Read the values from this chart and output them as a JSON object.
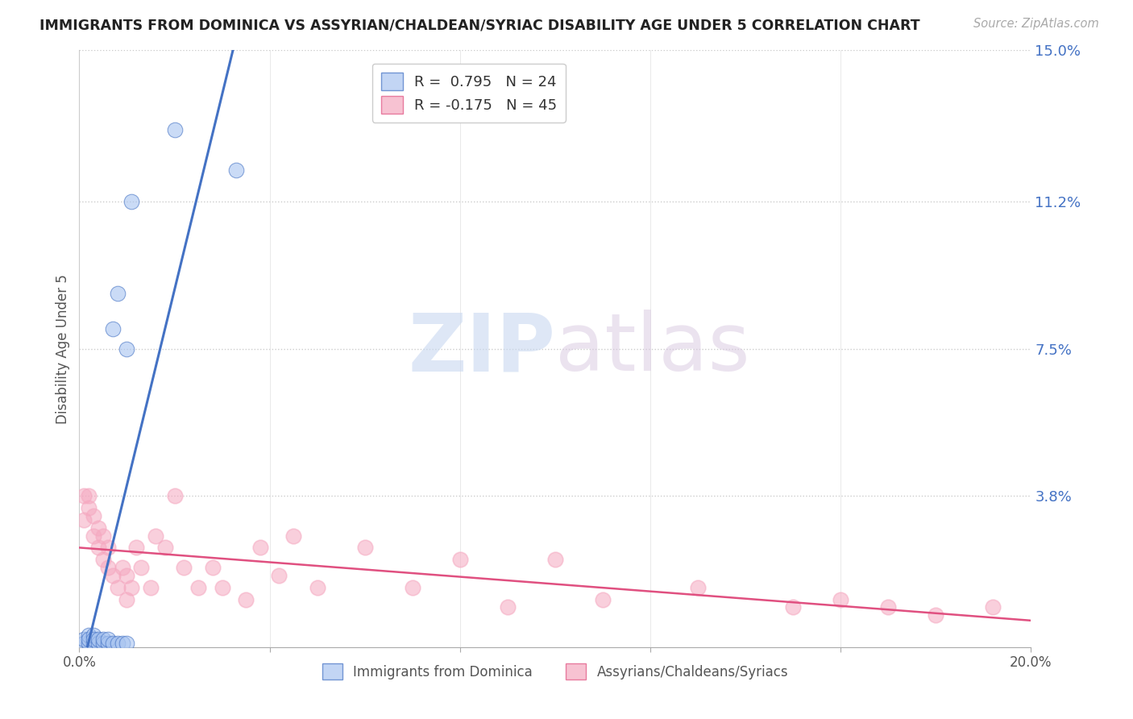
{
  "title": "IMMIGRANTS FROM DOMINICA VS ASSYRIAN/CHALDEAN/SYRIAC DISABILITY AGE UNDER 5 CORRELATION CHART",
  "source": "Source: ZipAtlas.com",
  "ylabel": "Disability Age Under 5",
  "xlim": [
    0.0,
    0.2
  ],
  "ylim": [
    0.0,
    0.15
  ],
  "yticks": [
    0.0,
    0.038,
    0.075,
    0.112,
    0.15
  ],
  "ytick_labels": [
    "",
    "3.8%",
    "7.5%",
    "11.2%",
    "15.0%"
  ],
  "xticks": [
    0.0,
    0.04,
    0.08,
    0.12,
    0.16,
    0.2
  ],
  "xtick_labels": [
    "0.0%",
    "",
    "",
    "",
    "",
    "20.0%"
  ],
  "legend1_label": "R =  0.795   N = 24",
  "legend2_label": "R = -0.175   N = 45",
  "legend_blue_label": "Immigrants from Dominica",
  "legend_pink_label": "Assyrians/Chaldeans/Syriacs",
  "blue_color": "#a8c4f0",
  "pink_color": "#f5a8c0",
  "blue_line_color": "#4472c4",
  "pink_line_color": "#e05080",
  "blue_tick_color": "#4472c4",
  "watermark_zip": "ZIP",
  "watermark_atlas": "atlas",
  "blue_scatter_x": [
    0.001,
    0.001,
    0.002,
    0.002,
    0.002,
    0.003,
    0.003,
    0.003,
    0.004,
    0.004,
    0.005,
    0.005,
    0.006,
    0.006,
    0.007,
    0.007,
    0.008,
    0.008,
    0.009,
    0.01,
    0.01,
    0.011,
    0.02,
    0.033
  ],
  "blue_scatter_y": [
    0.001,
    0.002,
    0.001,
    0.003,
    0.002,
    0.001,
    0.003,
    0.002,
    0.001,
    0.002,
    0.001,
    0.002,
    0.001,
    0.002,
    0.001,
    0.08,
    0.089,
    0.001,
    0.001,
    0.001,
    0.075,
    0.112,
    0.13,
    0.12
  ],
  "pink_scatter_x": [
    0.001,
    0.001,
    0.002,
    0.002,
    0.003,
    0.003,
    0.004,
    0.004,
    0.005,
    0.005,
    0.006,
    0.006,
    0.007,
    0.008,
    0.009,
    0.01,
    0.01,
    0.011,
    0.012,
    0.013,
    0.015,
    0.016,
    0.018,
    0.02,
    0.022,
    0.025,
    0.028,
    0.03,
    0.035,
    0.038,
    0.042,
    0.045,
    0.05,
    0.06,
    0.07,
    0.08,
    0.09,
    0.1,
    0.11,
    0.13,
    0.15,
    0.16,
    0.17,
    0.18,
    0.192
  ],
  "pink_scatter_y": [
    0.038,
    0.032,
    0.035,
    0.038,
    0.028,
    0.033,
    0.025,
    0.03,
    0.022,
    0.028,
    0.02,
    0.025,
    0.018,
    0.015,
    0.02,
    0.012,
    0.018,
    0.015,
    0.025,
    0.02,
    0.015,
    0.028,
    0.025,
    0.038,
    0.02,
    0.015,
    0.02,
    0.015,
    0.012,
    0.025,
    0.018,
    0.028,
    0.015,
    0.025,
    0.015,
    0.022,
    0.01,
    0.022,
    0.012,
    0.015,
    0.01,
    0.012,
    0.01,
    0.008,
    0.01
  ],
  "background_color": "#ffffff",
  "grid_color": "#cccccc"
}
